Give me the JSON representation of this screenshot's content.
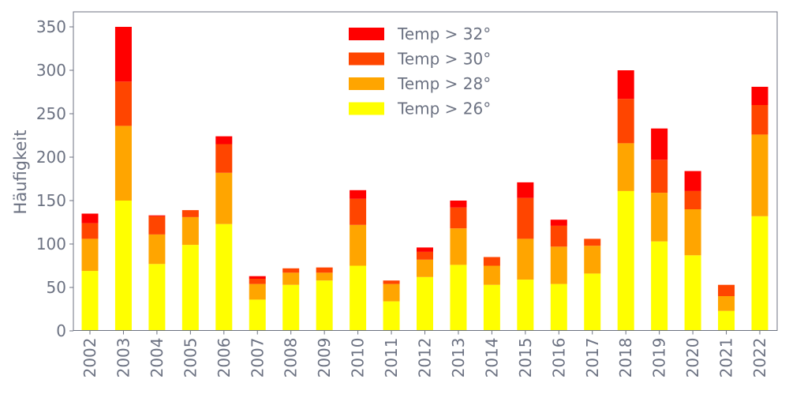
{
  "chart_data": {
    "type": "bar",
    "stacked": true,
    "title": "",
    "xlabel": "",
    "ylabel": "Häufigkeit",
    "ylim": [
      0,
      368
    ],
    "yticks": [
      0,
      50,
      100,
      150,
      200,
      250,
      300,
      350
    ],
    "grid": false,
    "legend_placement": "top-center",
    "categories": [
      "2002",
      "2003",
      "2004",
      "2005",
      "2006",
      "2007",
      "2008",
      "2009",
      "2010",
      "2011",
      "2012",
      "2013",
      "2014",
      "2015",
      "2016",
      "2017",
      "2018",
      "2019",
      "2020",
      "2021",
      "2022"
    ],
    "series": [
      {
        "name": "Temp > 26°",
        "color": "#ffff00",
        "values": [
          69,
          150,
          77,
          99,
          123,
          36,
          53,
          58,
          75,
          34,
          62,
          76,
          53,
          59,
          54,
          66,
          161,
          103,
          87,
          23,
          132
        ]
      },
      {
        "name": "Temp > 28°",
        "color": "#ffa500",
        "values": [
          37,
          86,
          34,
          32,
          59,
          18,
          14,
          9,
          47,
          20,
          20,
          42,
          22,
          47,
          43,
          32,
          55,
          56,
          53,
          17,
          94
        ]
      },
      {
        "name": "Temp > 30°",
        "color": "#ff4500",
        "values": [
          18,
          51,
          21,
          8,
          33,
          6,
          5,
          6,
          30,
          4,
          9,
          24,
          10,
          47,
          24,
          8,
          51,
          38,
          21,
          13,
          34
        ]
      },
      {
        "name": "Temp > 32°",
        "color": "#ff0000",
        "values": [
          11,
          63,
          1,
          0,
          9,
          3,
          0,
          0,
          10,
          0,
          5,
          8,
          0,
          18,
          7,
          0,
          33,
          36,
          23,
          0,
          21
        ]
      }
    ],
    "legend_order": [
      "Temp > 32°",
      "Temp > 30°",
      "Temp > 28°",
      "Temp > 26°"
    ],
    "axis_color": "#6c7282"
  }
}
